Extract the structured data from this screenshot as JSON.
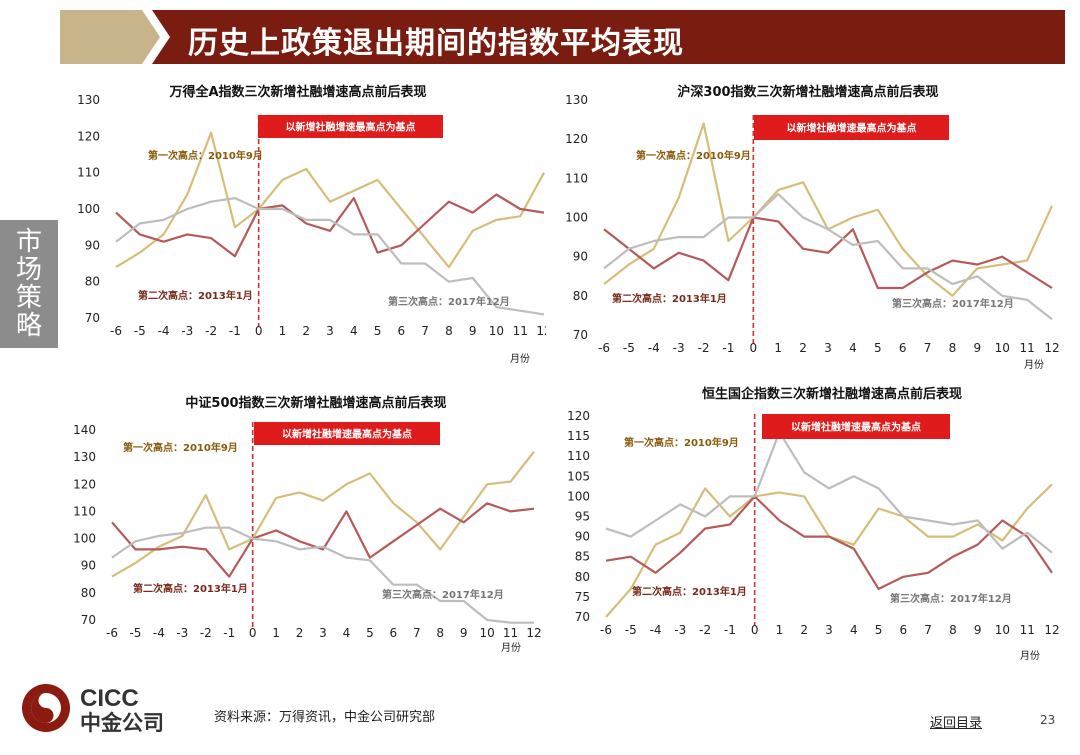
{
  "page": {
    "title": "历史上政策退出期间的指数平均表现",
    "side_tab": "市场策略",
    "source": "资料来源：万得资讯，中金公司研究部",
    "back_link": "返回目录",
    "page_number": "23",
    "logo": {
      "latin": "CICC",
      "chinese": "中金公司"
    }
  },
  "colors": {
    "title_bar": "#7a1d10",
    "title_tab": "#c8b48a",
    "side_tab": "#8c8c8c",
    "series1": "#d6bd7a",
    "series2": "#b55a58",
    "series3": "#bdbdbd",
    "marker_line": "#d0312d",
    "banner": "#e01b1b",
    "logo": "#8b1a10"
  },
  "chart_data": [
    {
      "type": "line",
      "title": "万得全A指数三次新增社融增速高点前后表现",
      "x": [
        -6,
        -5,
        -4,
        -3,
        -2,
        -1,
        0,
        1,
        2,
        3,
        4,
        5,
        6,
        7,
        8,
        9,
        10,
        11,
        12
      ],
      "xlabel": "月份",
      "ylim": [
        70,
        130
      ],
      "yticks": [
        70,
        80,
        90,
        100,
        110,
        120,
        130
      ],
      "banner": "以新增社融增速最高点为基点",
      "annotations": [
        {
          "text": "第一次高点：2010年9月",
          "series": 0
        },
        {
          "text": "第二次高点：2013年1月",
          "series": 1
        },
        {
          "text": "第三次高点：2017年12月",
          "series": 2
        }
      ],
      "series": [
        {
          "values": [
            84,
            88,
            93,
            104,
            121,
            95,
            100,
            108,
            111,
            102,
            105,
            108,
            100,
            92,
            84,
            94,
            97,
            98,
            110
          ]
        },
        {
          "values": [
            99,
            93,
            91,
            93,
            92,
            87,
            100,
            101,
            96,
            94,
            103,
            88,
            90,
            96,
            102,
            99,
            104,
            100,
            99
          ]
        },
        {
          "values": [
            91,
            96,
            97,
            100,
            102,
            103,
            100,
            100,
            97,
            97,
            93,
            93,
            85,
            85,
            80,
            81,
            73,
            72,
            71
          ]
        }
      ]
    },
    {
      "type": "line",
      "title": "沪深300指数三次新增社融增速高点前后表现",
      "x": [
        -6,
        -5,
        -4,
        -3,
        -2,
        -1,
        0,
        1,
        2,
        3,
        4,
        5,
        6,
        7,
        8,
        9,
        10,
        11,
        12
      ],
      "xlabel": "月份",
      "ylim": [
        70,
        130
      ],
      "yticks": [
        70,
        80,
        90,
        100,
        110,
        120,
        130
      ],
      "banner": "以新增社融增速最高点为基点",
      "annotations": [
        {
          "text": "第一次高点：2010年9月",
          "series": 0
        },
        {
          "text": "第二次高点：2013年1月",
          "series": 1
        },
        {
          "text": "第三次高点：2017年12月",
          "series": 2
        }
      ],
      "series": [
        {
          "values": [
            83,
            88,
            92,
            105,
            124,
            94,
            100,
            107,
            109,
            97,
            100,
            102,
            92,
            85,
            80,
            87,
            88,
            89,
            103
          ]
        },
        {
          "values": [
            97,
            92,
            87,
            91,
            89,
            84,
            100,
            99,
            92,
            91,
            97,
            82,
            82,
            86,
            89,
            88,
            90,
            86,
            82
          ]
        },
        {
          "values": [
            87,
            92,
            94,
            95,
            95,
            100,
            100,
            106,
            100,
            97,
            93,
            94,
            87,
            87,
            83,
            85,
            80,
            79,
            74
          ]
        }
      ]
    },
    {
      "type": "line",
      "title": "中证500指数三次新增社融增速高点前后表现",
      "x": [
        -6,
        -5,
        -4,
        -3,
        -2,
        -1,
        0,
        1,
        2,
        3,
        4,
        5,
        6,
        7,
        8,
        9,
        10,
        11,
        12
      ],
      "xlabel": "月份",
      "ylim": [
        70,
        140
      ],
      "yticks": [
        70,
        80,
        90,
        100,
        110,
        120,
        130,
        140
      ],
      "banner": "以新增社融增速最高点为基点",
      "annotations": [
        {
          "text": "第一次高点：2010年9月",
          "series": 0
        },
        {
          "text": "第二次高点：2013年1月",
          "series": 1
        },
        {
          "text": "第三次高点：2017年12月",
          "series": 2
        }
      ],
      "series": [
        {
          "values": [
            86,
            91,
            97,
            101,
            116,
            96,
            100,
            115,
            117,
            114,
            120,
            124,
            113,
            106,
            96,
            108,
            120,
            121,
            132
          ]
        },
        {
          "values": [
            106,
            96,
            96,
            97,
            96,
            86,
            100,
            103,
            99,
            96,
            110,
            93,
            99,
            105,
            111,
            106,
            113,
            110,
            111
          ]
        },
        {
          "values": [
            93,
            99,
            101,
            102,
            104,
            104,
            100,
            99,
            96,
            97,
            93,
            92,
            83,
            83,
            77,
            77,
            70,
            69,
            69
          ]
        }
      ]
    },
    {
      "type": "line",
      "title": "恒生国企指数三次新增社融增速高点前后表现",
      "x": [
        -6,
        -5,
        -4,
        -3,
        -2,
        -1,
        0,
        1,
        2,
        3,
        4,
        5,
        6,
        7,
        8,
        9,
        10,
        11,
        12
      ],
      "xlabel": "月份",
      "ylim": [
        70,
        120
      ],
      "yticks": [
        70,
        75,
        80,
        85,
        90,
        95,
        100,
        105,
        110,
        115,
        120
      ],
      "banner": "以新增社融增速最高点为基点",
      "annotations": [
        {
          "text": "第一次高点：2010年9月",
          "series": 0
        },
        {
          "text": "第二次高点：2013年1月",
          "series": 1
        },
        {
          "text": "第三次高点：2017年12月",
          "series": 2
        }
      ],
      "series": [
        {
          "values": [
            70,
            77,
            88,
            91,
            102,
            95,
            100,
            101,
            100,
            90,
            88,
            97,
            95,
            90,
            90,
            93,
            89,
            97,
            103
          ]
        },
        {
          "values": [
            84,
            85,
            81,
            86,
            92,
            93,
            100,
            94,
            90,
            90,
            87,
            77,
            80,
            81,
            85,
            88,
            94,
            90,
            81
          ]
        },
        {
          "values": [
            92,
            90,
            94,
            98,
            95,
            100,
            100,
            116,
            106,
            102,
            105,
            102,
            95,
            94,
            93,
            94,
            87,
            91,
            86
          ]
        }
      ]
    }
  ]
}
